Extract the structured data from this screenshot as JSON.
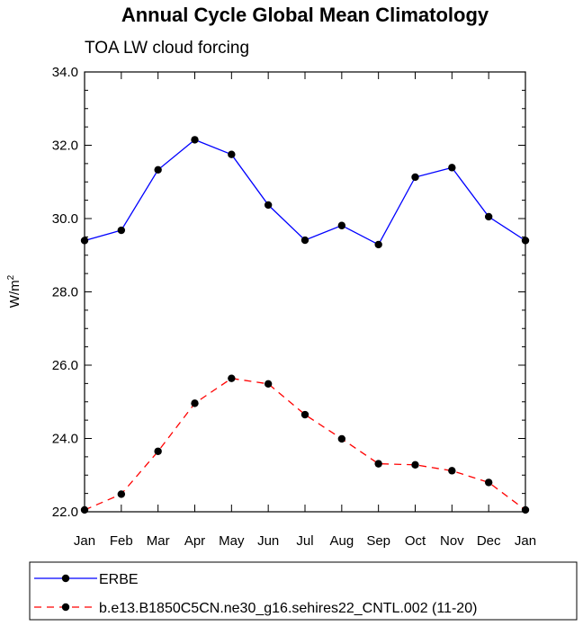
{
  "chart_data": {
    "type": "line",
    "title": "Annual Cycle Global Mean Climatology",
    "subtitle": "TOA LW cloud forcing",
    "xlabel": "",
    "ylabel": "W/m",
    "ylabel_superscript": "2",
    "categories": [
      "Jan",
      "Feb",
      "Mar",
      "Apr",
      "May",
      "Jun",
      "Jul",
      "Aug",
      "Sep",
      "Oct",
      "Nov",
      "Dec",
      "Jan"
    ],
    "ylim": [
      22.0,
      34.0
    ],
    "yticks": [
      "22.0",
      "24.0",
      "26.0",
      "28.0",
      "30.0",
      "32.0",
      "34.0"
    ],
    "series": [
      {
        "name": "ERBE",
        "color": "#0000ff",
        "dash": "solid",
        "values": [
          29.4,
          29.68,
          31.33,
          32.15,
          31.75,
          30.37,
          29.41,
          29.81,
          29.29,
          31.13,
          31.39,
          30.05,
          29.4
        ]
      },
      {
        "name": "b.e13.B1850C5CN.ne30_g16.sehires22_CNTL.002 (11-20)",
        "color": "#ff0000",
        "dash": "dashed",
        "values": [
          22.05,
          22.48,
          23.65,
          24.96,
          25.64,
          25.49,
          24.65,
          23.99,
          23.31,
          23.28,
          23.12,
          22.8,
          22.05
        ]
      }
    ],
    "legend_position": "bottom"
  }
}
